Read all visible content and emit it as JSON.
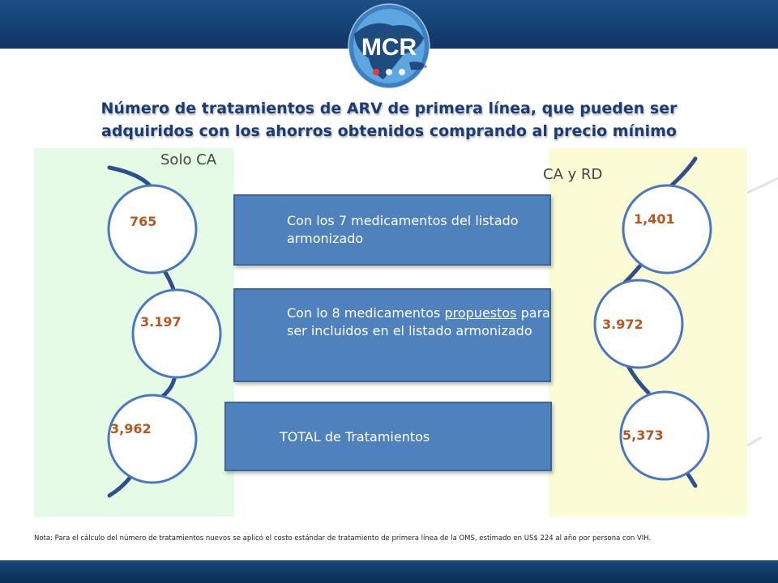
{
  "slide": {
    "title_line1": "Número de tratamientos de ARV de primera línea, que pueden ser",
    "title_line2": "adquiridos con los ahorros obtenidos comprando al precio mínimo",
    "logo_text": "MCR",
    "left_panel": {
      "label": "Solo CA",
      "values": [
        "765",
        "3.197",
        "3,962"
      ]
    },
    "right_panel": {
      "label": "CA y RD",
      "values": [
        "1,401",
        "3.972",
        "5,373"
      ]
    },
    "boxes": [
      {
        "text": "Con los 7 medicamentos del listado armonizado"
      },
      {
        "prefix": "Con lo 8 medicamentos ",
        "underlined": "propuestos",
        "suffix": " para ser incluidos en el listado armonizado"
      },
      {
        "text": "TOTAL de Tratamientos"
      }
    ],
    "note": "Nota: Para el cálculo del número de tratamientos nuevos se aplicó el costo estándar de tratamiento de primera línea de la OMS, estimado en US$ 224 al año por persona con VIH.",
    "colors": {
      "header": "#174a7e",
      "box": "#4f81bd",
      "value": "#b8561f",
      "circle_border": "#4a78c0",
      "left_panel": "#e6fbe6",
      "right_panel": "#fbfbd6"
    }
  }
}
